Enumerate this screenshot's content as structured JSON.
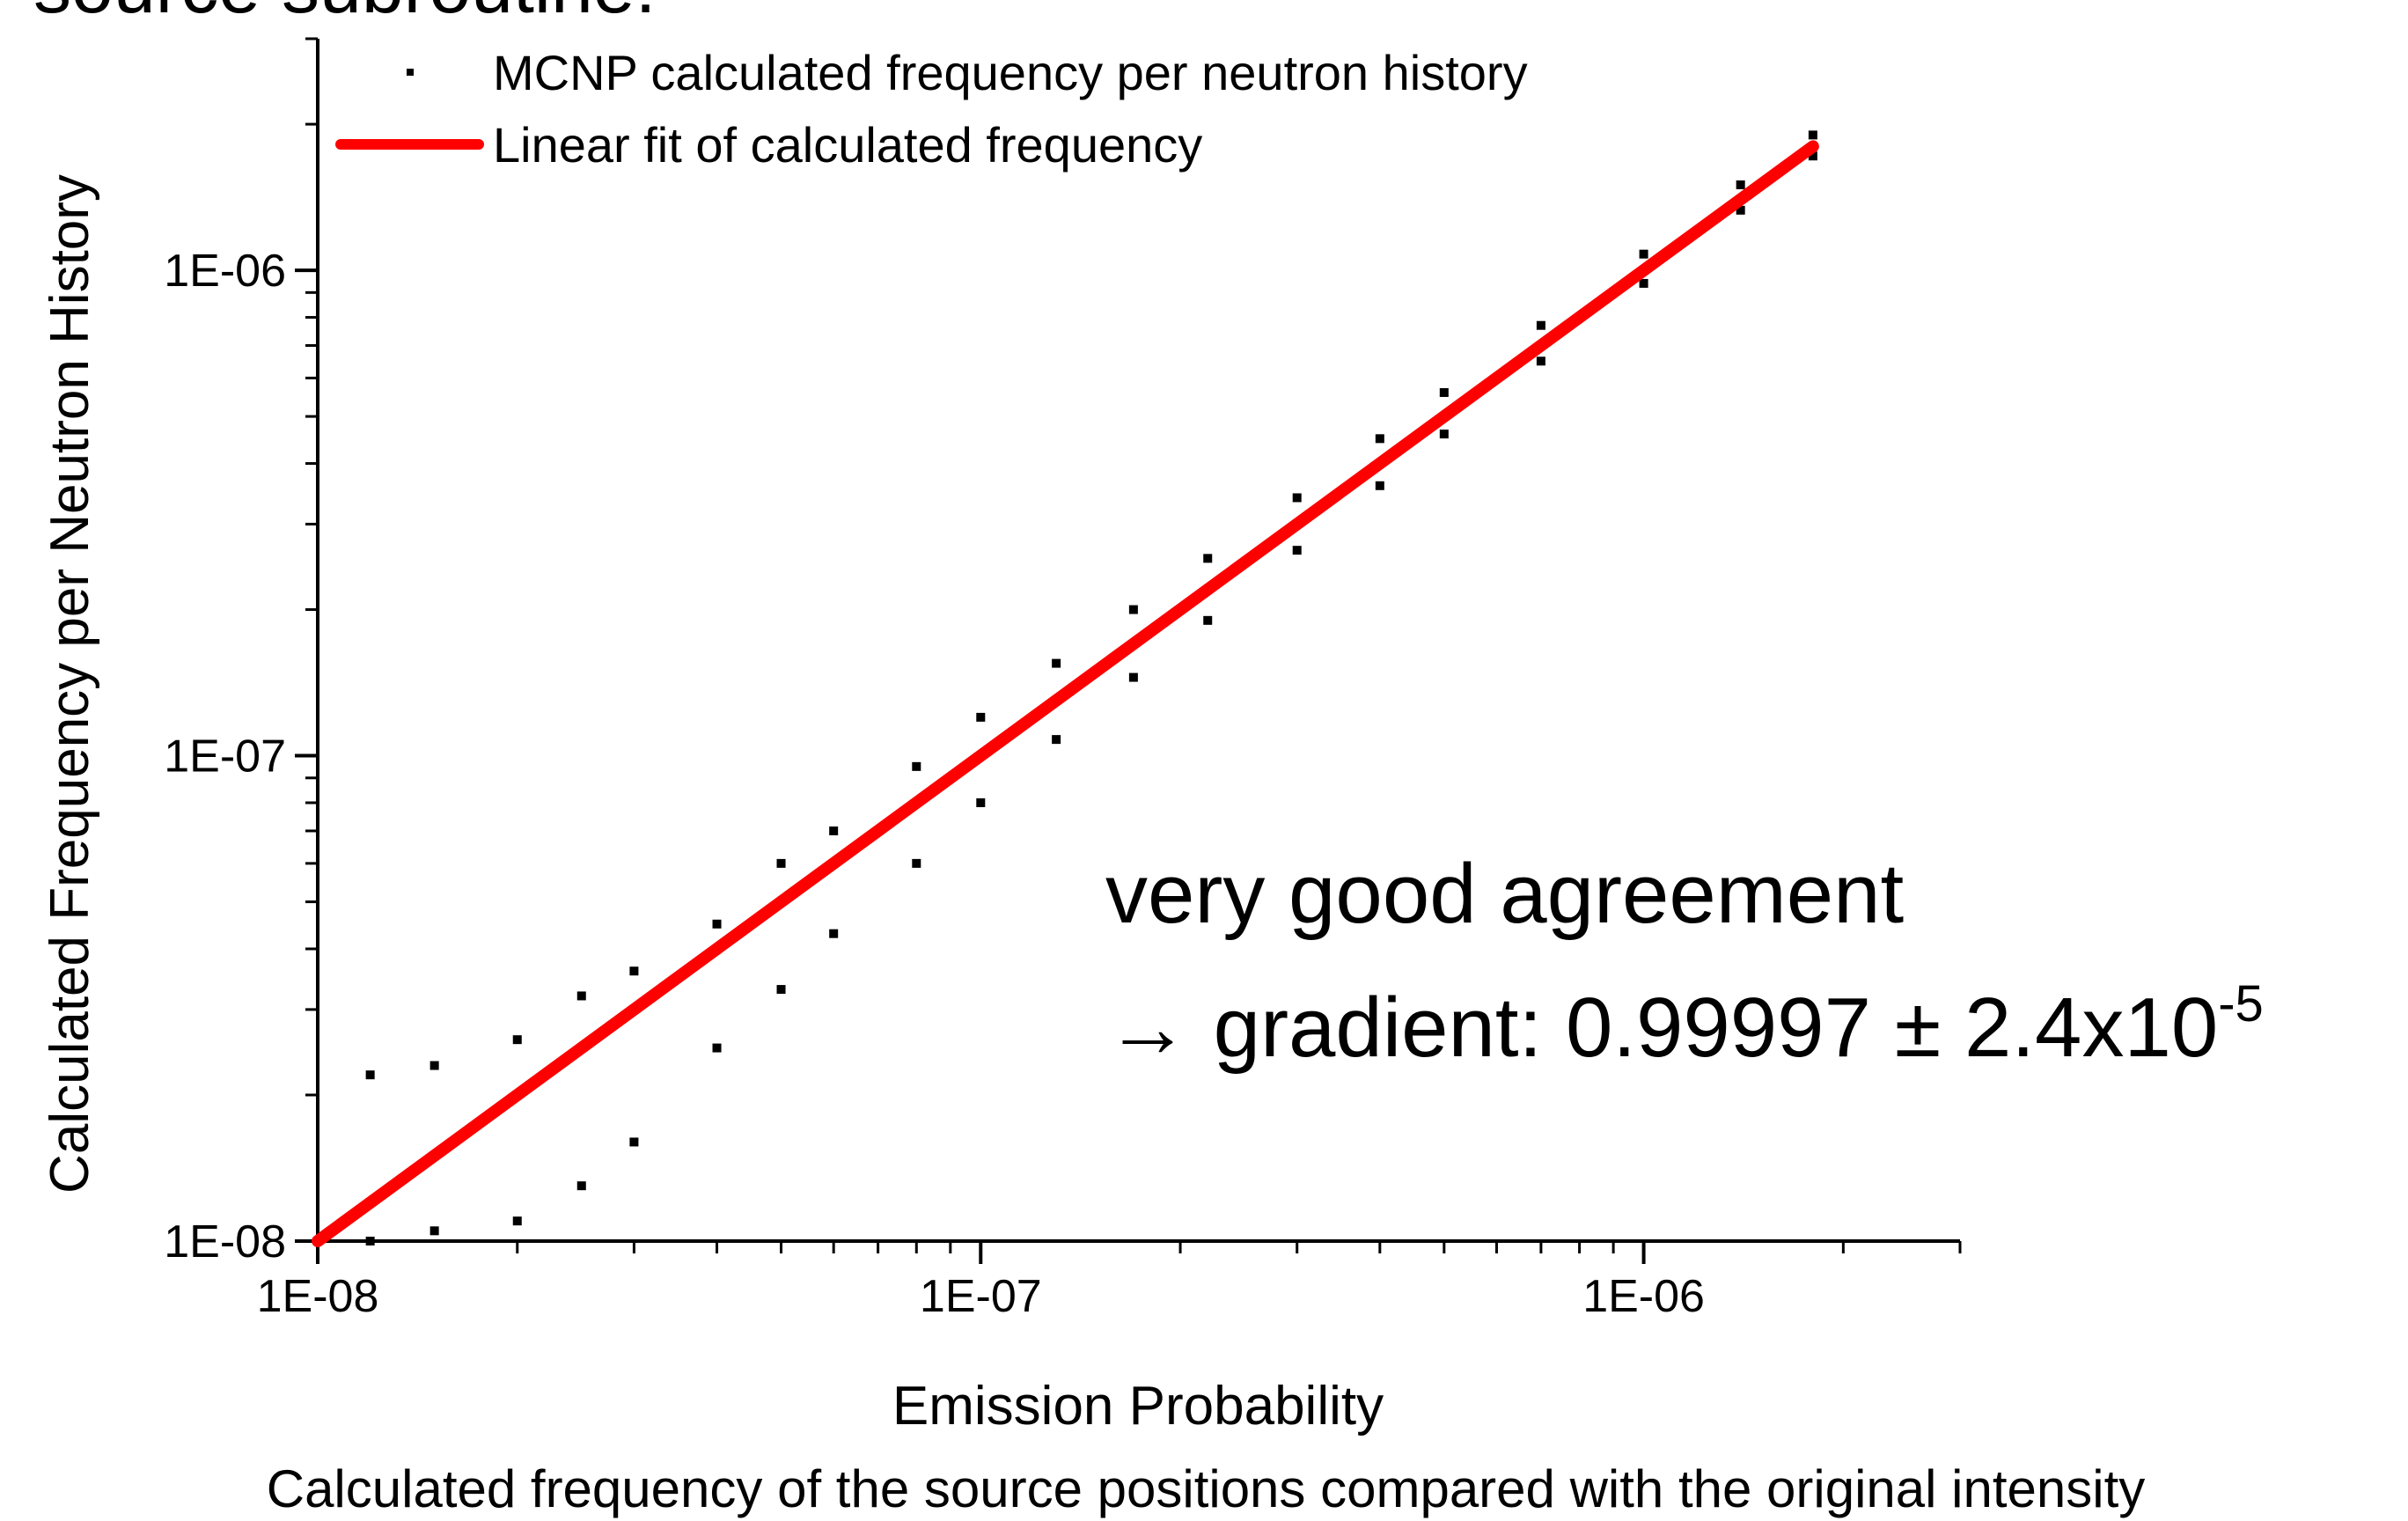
{
  "chart_data": {
    "type": "scatter",
    "title": "source subroutine:",
    "xlabel": "Emission Probability",
    "ylabel": "Calculated Frequency per Neutron History",
    "caption": "Calculated frequency of the source positions compared with the original intensity",
    "annotations": [
      "very good agreement",
      "→ gradient: 0.99997 ± 2.4x10",
      "-5"
    ],
    "log_x": true,
    "log_y": true,
    "xlim": [
      1e-08,
      3e-06
    ],
    "ylim": [
      1e-08,
      3e-06
    ],
    "xticks": [
      {
        "value": 1e-08,
        "label": "1E-08"
      },
      {
        "value": 1e-07,
        "label": "1E-07"
      },
      {
        "value": 1e-06,
        "label": "1E-06"
      }
    ],
    "yticks": [
      {
        "value": 1e-08,
        "label": "1E-08"
      },
      {
        "value": 1e-07,
        "label": "1E-07"
      },
      {
        "value": 1e-06,
        "label": "1E-06"
      }
    ],
    "xminor_ticks": [
      2e-08,
      3e-08,
      4e-08,
      5e-08,
      6e-08,
      7e-08,
      8e-08,
      9e-08,
      2e-07,
      3e-07,
      4e-07,
      5e-07,
      6e-07,
      7e-07,
      8e-07,
      9e-07,
      2e-06,
      3e-06
    ],
    "yminor_ticks": [
      2e-08,
      3e-08,
      4e-08,
      5e-08,
      6e-08,
      7e-08,
      8e-08,
      9e-08,
      2e-07,
      3e-07,
      4e-07,
      5e-07,
      6e-07,
      7e-07,
      8e-07,
      9e-07,
      2e-06,
      3e-06
    ],
    "legend": "upper left",
    "series": [
      {
        "name": "MCNP calculated frequency per neutron history",
        "type": "scatter",
        "color": "#000000",
        "x": [
          1.2e-08,
          1.2e-08,
          1.2e-08,
          1.5e-08,
          1.5e-08,
          1.5e-08,
          2e-08,
          2e-08,
          2e-08,
          2.5e-08,
          2.5e-08,
          2.5e-08,
          3e-08,
          3e-08,
          3e-08,
          4e-08,
          4e-08,
          4e-08,
          5e-08,
          5e-08,
          5e-08,
          6e-08,
          6e-08,
          6e-08,
          8e-08,
          8e-08,
          8e-08,
          1e-07,
          1e-07,
          1e-07,
          1.3e-07,
          1.3e-07,
          1.3e-07,
          1.7e-07,
          1.7e-07,
          1.7e-07,
          2.2e-07,
          2.2e-07,
          2.2e-07,
          3e-07,
          3e-07,
          3e-07,
          4e-07,
          4e-07,
          4e-07,
          5e-07,
          5e-07,
          5e-07,
          7e-07,
          7e-07,
          7e-07,
          1e-06,
          1e-06,
          1e-06,
          1.4e-06,
          1.4e-06,
          1.4e-06,
          1.8e-06,
          1.8e-06,
          1.8e-06
        ],
        "values": [
          2.2e-08,
          1.2e-08,
          1e-08,
          2.3e-08,
          1.5e-08,
          1.05e-08,
          2.6e-08,
          2e-08,
          1.1e-08,
          3.2e-08,
          2.5e-08,
          1.3e-08,
          3.6e-08,
          3e-08,
          1.6e-08,
          4.5e-08,
          4e-08,
          2.5e-08,
          6e-08,
          5e-08,
          3.3e-08,
          7e-08,
          6e-08,
          4.3e-08,
          9.5e-08,
          8e-08,
          6e-08,
          1.2e-07,
          1e-07,
          8e-08,
          1.55e-07,
          1.3e-07,
          1.08e-07,
          2e-07,
          1.7e-07,
          1.45e-07,
          2.55e-07,
          2.2e-07,
          1.9e-07,
          3.4e-07,
          3e-07,
          2.65e-07,
          4.5e-07,
          4e-07,
          3.6e-07,
          5.6e-07,
          5e-07,
          4.6e-07,
          7.7e-07,
          7e-07,
          6.5e-07,
          1.08e-06,
          1e-06,
          9.4e-07,
          1.5e-06,
          1.4e-06,
          1.33e-06,
          1.9e-06,
          1.8e-06,
          1.72e-06
        ]
      },
      {
        "name": "Linear fit of calculated frequency",
        "type": "line",
        "color": "#ff0000",
        "x": [
          1e-08,
          1.8e-06
        ],
        "values": [
          1e-08,
          1.8e-06
        ]
      }
    ]
  }
}
